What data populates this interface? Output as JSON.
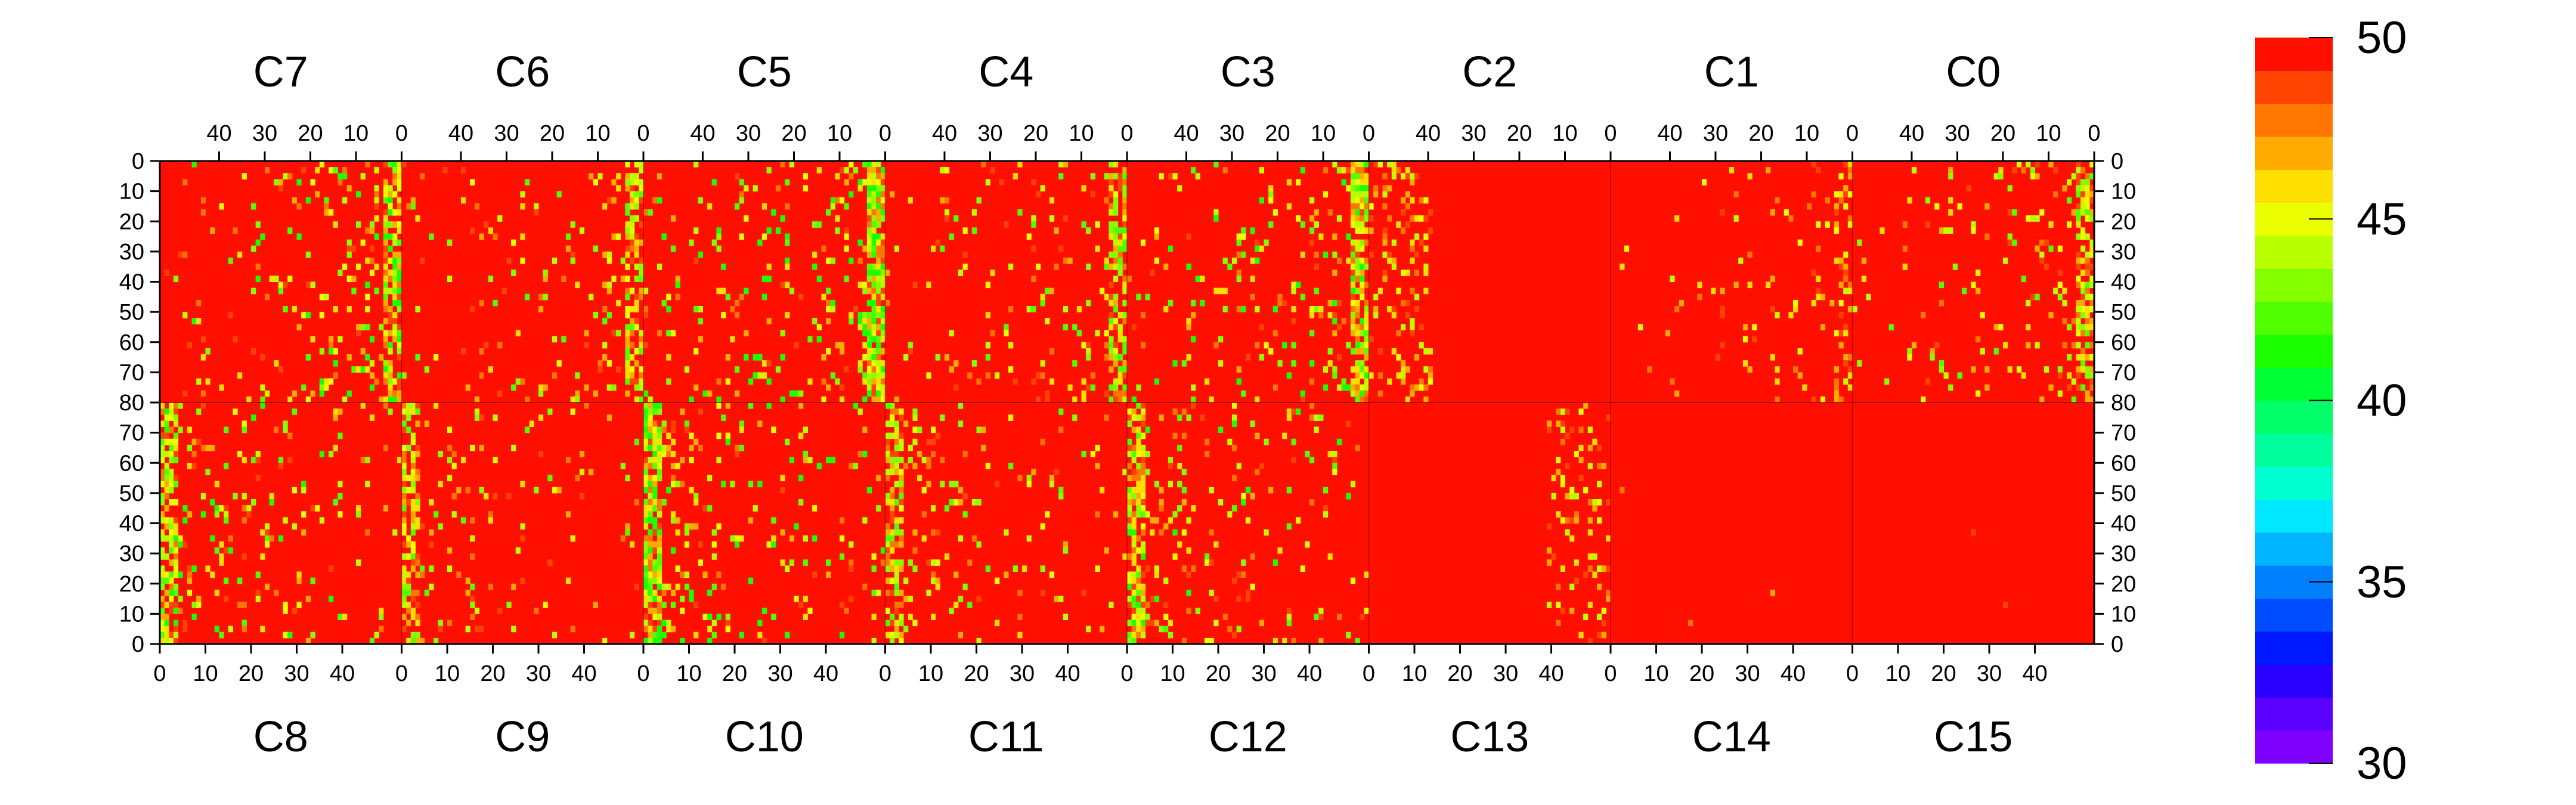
{
  "chart_data": {
    "type": "heatmap",
    "panels_top": [
      {
        "label": "C7",
        "x_ticks": [
          "40",
          "30",
          "20",
          "10",
          "0"
        ],
        "hot_region": "right-edge",
        "hot_intensity": 0.75
      },
      {
        "label": "C6",
        "x_ticks": [
          "40",
          "30",
          "20",
          "10",
          "0"
        ],
        "hot_region": "right-edge",
        "hot_intensity": 0.55
      },
      {
        "label": "C5",
        "x_ticks": [
          "40",
          "30",
          "20",
          "10",
          "0"
        ],
        "hot_region": "right-edge",
        "hot_intensity": 0.85
      },
      {
        "label": "C4",
        "x_ticks": [
          "40",
          "30",
          "20",
          "10",
          "0"
        ],
        "hot_region": "right-edge",
        "hot_intensity": 0.6
      },
      {
        "label": "C3",
        "x_ticks": [
          "40",
          "30",
          "20",
          "10",
          "0"
        ],
        "hot_region": "right-edge",
        "hot_intensity": 0.8
      },
      {
        "label": "C2",
        "x_ticks": [
          "40",
          "30",
          "20",
          "10",
          "0"
        ],
        "hot_region": "left-band",
        "hot_intensity": 0.35
      },
      {
        "label": "C1",
        "x_ticks": [
          "40",
          "30",
          "20",
          "10",
          "0"
        ],
        "hot_region": "right-edge",
        "hot_intensity": 0.25
      },
      {
        "label": "C0",
        "x_ticks": [
          "40",
          "30",
          "20",
          "10",
          "0"
        ],
        "hot_region": "right-edge",
        "hot_intensity": 0.6
      }
    ],
    "panels_bottom": [
      {
        "label": "C8",
        "x_ticks": [
          "0",
          "10",
          "20",
          "30",
          "40"
        ],
        "hot_region": "right-edge",
        "hot_intensity": 0.7
      },
      {
        "label": "C9",
        "x_ticks": [
          "0",
          "10",
          "20",
          "30",
          "40"
        ],
        "hot_region": "right-edge",
        "hot_intensity": 0.55
      },
      {
        "label": "C10",
        "x_ticks": [
          "0",
          "10",
          "20",
          "30",
          "40"
        ],
        "hot_region": "right-edge",
        "hot_intensity": 0.8
      },
      {
        "label": "C11",
        "x_ticks": [
          "0",
          "10",
          "20",
          "30",
          "40"
        ],
        "hot_region": "right-edge",
        "hot_intensity": 0.55
      },
      {
        "label": "C12",
        "x_ticks": [
          "0",
          "10",
          "20",
          "30",
          "40"
        ],
        "hot_region": "right-edge",
        "hot_intensity": 0.7
      },
      {
        "label": "C13",
        "x_ticks": [
          "0",
          "10",
          "20",
          "30",
          "40"
        ],
        "hot_region": "left-band",
        "hot_intensity": 0.35
      },
      {
        "label": "C14",
        "x_ticks": [
          "0",
          "10",
          "20",
          "30",
          "40"
        ],
        "hot_region": "none",
        "hot_intensity": 0.05
      },
      {
        "label": "C15",
        "x_ticks": [
          "0",
          "10",
          "20",
          "30",
          "40"
        ],
        "hot_region": "none",
        "hot_intensity": 0.05
      }
    ],
    "x_range": [
      0,
      53
    ],
    "y_ticks_top": [
      "0",
      "10",
      "20",
      "30",
      "40",
      "50",
      "60",
      "70",
      "80"
    ],
    "y_ticks_bottom": [
      "80",
      "70",
      "60",
      "50",
      "40",
      "30",
      "20",
      "10",
      "0"
    ],
    "y_range": [
      0,
      80
    ],
    "colorbar": {
      "range": [
        30,
        50
      ],
      "tick_labels": [
        "50",
        "45",
        "40",
        "35",
        "30"
      ],
      "colors": [
        "#7f00ff",
        "#5a00ff",
        "#2a00ff",
        "#0018ff",
        "#004cff",
        "#0080ff",
        "#00b4ff",
        "#00e8ff",
        "#00ffd0",
        "#00ff9c",
        "#00ff68",
        "#00ff34",
        "#1cff00",
        "#50ff00",
        "#84ff00",
        "#b8ff00",
        "#ecff00",
        "#ffdf00",
        "#ffab00",
        "#ff7700",
        "#ff4300",
        "#ff0f00"
      ]
    },
    "background_value_color": "#ff0f00",
    "grid": false
  }
}
